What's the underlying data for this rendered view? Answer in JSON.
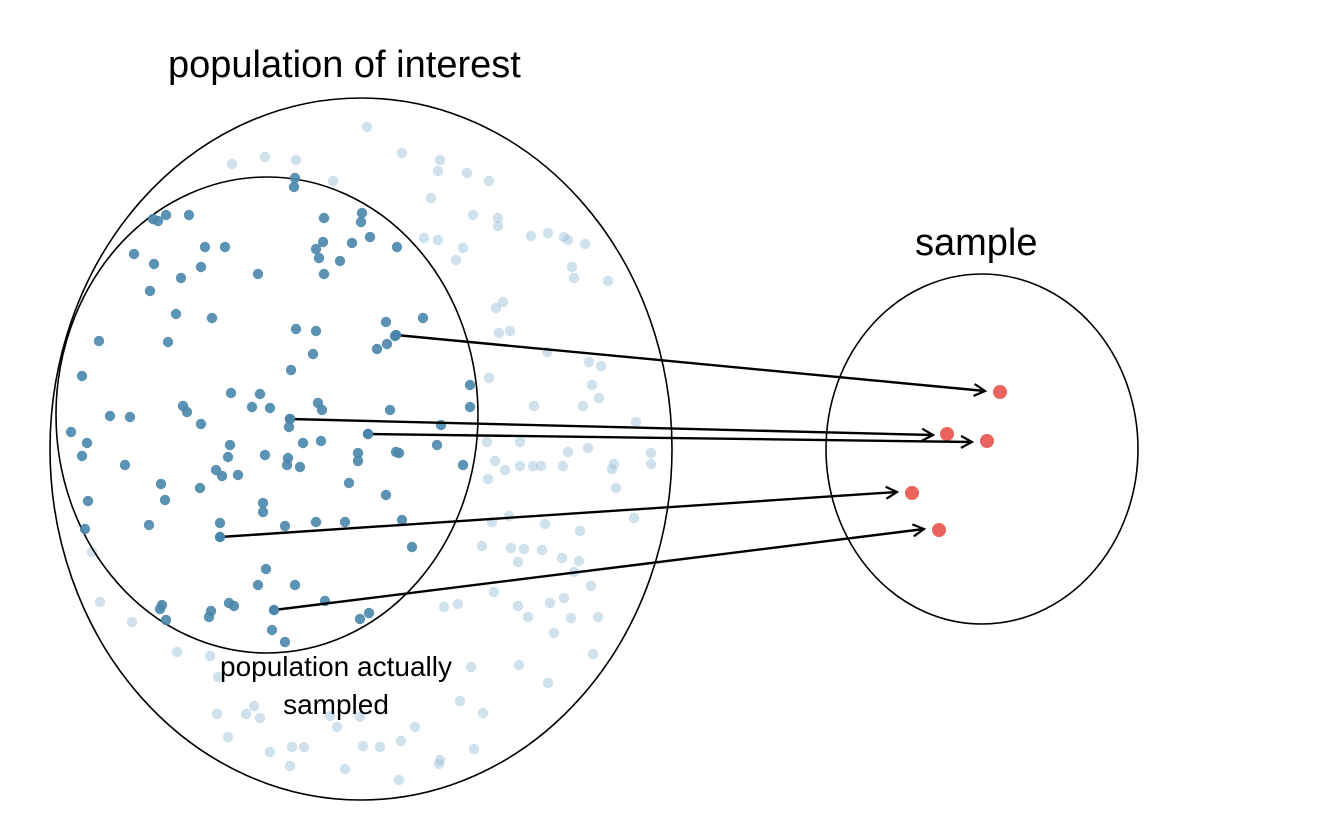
{
  "labels": {
    "population": "population of interest",
    "sample": "sample",
    "sampled_line1": "population actually",
    "sampled_line2": "sampled"
  },
  "colors": {
    "sampled_dot": "#4a86ab",
    "unsampled_dot": "#9fc3da",
    "sample_dot": "#e8524a",
    "outline": "#000000"
  }
}
